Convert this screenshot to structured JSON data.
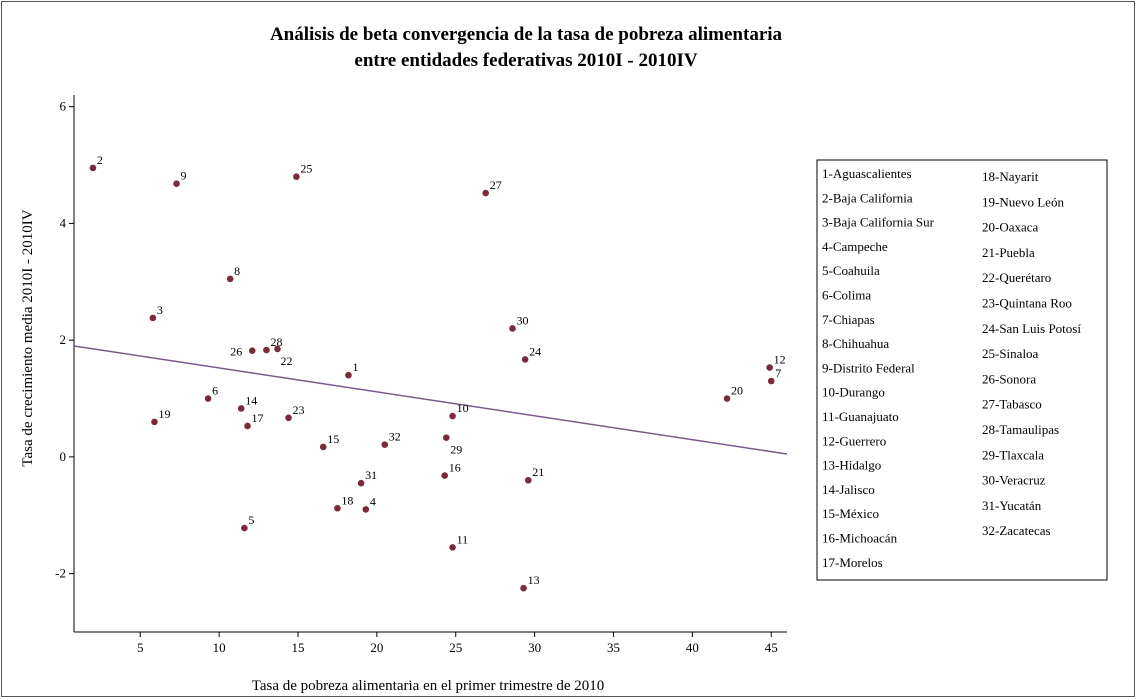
{
  "chart_data": {
    "type": "scatter",
    "title_line1": "Análisis de beta convergencia de la tasa de pobreza alimentaria",
    "title_line2": "entre entidades federativas 2010I - 2010IV",
    "xlabel": "Tasa de pobreza alimentaria en el primer trimestre de 2010",
    "ylabel": "Tasa de crecimiento media 2010I - 2010IV",
    "xlim": [
      0.8,
      46
    ],
    "ylim": [
      -3.0,
      6.2
    ],
    "x_ticks": [
      "5",
      "10",
      "15",
      "20",
      "25",
      "30",
      "35",
      "40",
      "45"
    ],
    "y_ticks": [
      "-2",
      "0",
      "2",
      "4",
      "6"
    ],
    "point_color": "#7b2a3a",
    "line_color": "#7b5a8a",
    "fit_line": {
      "x": [
        0.8,
        46
      ],
      "y": [
        1.9,
        0.05
      ]
    },
    "points": [
      {
        "label": "1",
        "x": 18.2,
        "y": 1.4
      },
      {
        "label": "2",
        "x": 2.0,
        "y": 4.95
      },
      {
        "label": "3",
        "x": 5.8,
        "y": 2.38
      },
      {
        "label": "4",
        "x": 19.3,
        "y": -0.9
      },
      {
        "label": "5",
        "x": 11.6,
        "y": -1.22
      },
      {
        "label": "6",
        "x": 9.3,
        "y": 1.0
      },
      {
        "label": "7",
        "x": 45.0,
        "y": 1.3
      },
      {
        "label": "8",
        "x": 10.7,
        "y": 3.05
      },
      {
        "label": "9",
        "x": 7.3,
        "y": 4.68
      },
      {
        "label": "10",
        "x": 24.8,
        "y": 0.7
      },
      {
        "label": "11",
        "x": 24.8,
        "y": -1.55
      },
      {
        "label": "12",
        "x": 44.9,
        "y": 1.53
      },
      {
        "label": "13",
        "x": 29.3,
        "y": -2.25
      },
      {
        "label": "14",
        "x": 11.4,
        "y": 0.83
      },
      {
        "label": "15",
        "x": 16.6,
        "y": 0.17
      },
      {
        "label": "16",
        "x": 24.3,
        "y": -0.32
      },
      {
        "label": "17",
        "x": 11.8,
        "y": 0.53
      },
      {
        "label": "18",
        "x": 17.5,
        "y": -0.88
      },
      {
        "label": "19",
        "x": 5.9,
        "y": 0.6
      },
      {
        "label": "20",
        "x": 42.2,
        "y": 1.0
      },
      {
        "label": "21",
        "x": 29.6,
        "y": -0.4
      },
      {
        "label": "22",
        "x": 13.7,
        "y": 1.85
      },
      {
        "label": "23",
        "x": 14.4,
        "y": 0.67
      },
      {
        "label": "24",
        "x": 29.4,
        "y": 1.67
      },
      {
        "label": "25",
        "x": 14.9,
        "y": 4.8
      },
      {
        "label": "26",
        "x": 12.1,
        "y": 1.82
      },
      {
        "label": "27",
        "x": 26.9,
        "y": 4.52
      },
      {
        "label": "28",
        "x": 13.0,
        "y": 1.83
      },
      {
        "label": "29",
        "x": 24.4,
        "y": 0.33
      },
      {
        "label": "30",
        "x": 28.6,
        "y": 2.2
      },
      {
        "label": "31",
        "x": 19.0,
        "y": -0.45
      },
      {
        "label": "32",
        "x": 20.5,
        "y": 0.21
      }
    ],
    "legend_col1": [
      "1-Aguascalientes",
      "2-Baja California",
      "3-Baja California Sur",
      "4-Campeche",
      "5-Coahuila",
      "6-Colima",
      "7-Chiapas",
      "8-Chihuahua",
      "9-Distrito Federal",
      "10-Durango",
      "11-Guanajuato",
      "12-Guerrero",
      "13-Hidalgo",
      "14-Jalisco",
      "15-México",
      "16-Michoacán",
      "17-Morelos"
    ],
    "legend_col2": [
      "18-Nayarit",
      "19-Nuevo León",
      "20-Oaxaca",
      "21-Puebla",
      "22-Querétaro",
      "23-Quintana Roo",
      "24-San Luis Potosí",
      "25-Sinaloa",
      "26-Sonora",
      "27-Tabasco",
      "28-Tamaulipas",
      "29-Tlaxcala",
      "30-Veracruz",
      "31-Yucatán",
      "32-Zacatecas"
    ]
  }
}
